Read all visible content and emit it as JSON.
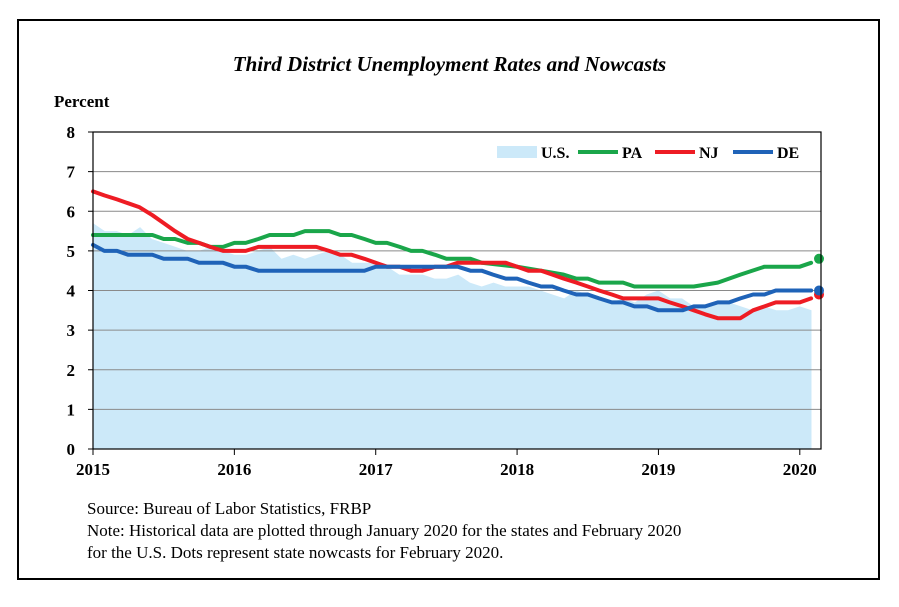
{
  "chart_data": {
    "type": "line",
    "title": "Third District Unemployment Rates and Nowcasts",
    "ylabel": "Percent",
    "xlabel": "",
    "ylim": [
      0,
      8
    ],
    "xlim": [
      2015,
      2020.15
    ],
    "yticks": [
      "0",
      "1",
      "2",
      "3",
      "4",
      "5",
      "6",
      "7",
      "8"
    ],
    "xticks": [
      {
        "value": 2015,
        "label": "2015"
      },
      {
        "value": 2016,
        "label": "2016"
      },
      {
        "value": 2017,
        "label": "2017"
      },
      {
        "value": 2018,
        "label": "2018"
      },
      {
        "value": 2019,
        "label": "2019"
      },
      {
        "value": 2020,
        "label": "2020"
      }
    ],
    "grid": true,
    "legend_position": "top-right",
    "colors": {
      "us": "#cce9f9",
      "pa": "#1aa64a",
      "nj": "#ee1c24",
      "de": "#1f63b8"
    },
    "series": [
      {
        "name": "U.S.",
        "type": "area",
        "color": "#cce9f9",
        "x_start": 2015.0,
        "step": 0.08333,
        "values": [
          5.7,
          5.5,
          5.5,
          5.4,
          5.6,
          5.3,
          5.2,
          5.1,
          5.0,
          5.0,
          5.1,
          5.0,
          4.9,
          4.9,
          5.0,
          5.1,
          4.8,
          4.9,
          4.8,
          4.9,
          5.0,
          4.9,
          4.7,
          4.7,
          4.7,
          4.6,
          4.4,
          4.4,
          4.4,
          4.3,
          4.3,
          4.4,
          4.2,
          4.1,
          4.2,
          4.1,
          4.1,
          4.1,
          4.0,
          3.9,
          3.8,
          4.0,
          3.9,
          3.8,
          3.7,
          3.8,
          3.7,
          3.9,
          4.0,
          3.8,
          3.8,
          3.6,
          3.6,
          3.7,
          3.7,
          3.6,
          3.5,
          3.6,
          3.5,
          3.5,
          3.6,
          3.5
        ]
      },
      {
        "name": "PA",
        "type": "line",
        "color": "#1aa64a",
        "points": [
          [
            2015.0,
            5.4
          ],
          [
            2015.42,
            5.4
          ],
          [
            2015.5,
            5.3
          ],
          [
            2015.58,
            5.3
          ],
          [
            2015.67,
            5.2
          ],
          [
            2015.75,
            5.2
          ],
          [
            2015.83,
            5.1
          ],
          [
            2015.92,
            5.1
          ],
          [
            2016.0,
            5.2
          ],
          [
            2016.08,
            5.2
          ],
          [
            2016.17,
            5.3
          ],
          [
            2016.25,
            5.4
          ],
          [
            2016.33,
            5.4
          ],
          [
            2016.42,
            5.4
          ],
          [
            2016.5,
            5.5
          ],
          [
            2016.67,
            5.5
          ],
          [
            2016.75,
            5.4
          ],
          [
            2016.83,
            5.4
          ],
          [
            2016.92,
            5.3
          ],
          [
            2017.0,
            5.2
          ],
          [
            2017.08,
            5.2
          ],
          [
            2017.17,
            5.1
          ],
          [
            2017.25,
            5.0
          ],
          [
            2017.33,
            5.0
          ],
          [
            2017.42,
            4.9
          ],
          [
            2017.5,
            4.8
          ],
          [
            2017.58,
            4.8
          ],
          [
            2017.67,
            4.8
          ],
          [
            2017.75,
            4.7
          ],
          [
            2018.0,
            4.6
          ],
          [
            2018.17,
            4.5
          ],
          [
            2018.33,
            4.4
          ],
          [
            2018.42,
            4.3
          ],
          [
            2018.5,
            4.3
          ],
          [
            2018.58,
            4.2
          ],
          [
            2018.75,
            4.2
          ],
          [
            2018.83,
            4.1
          ],
          [
            2019.25,
            4.1
          ],
          [
            2019.42,
            4.2
          ],
          [
            2019.58,
            4.4
          ],
          [
            2019.75,
            4.6
          ],
          [
            2019.92,
            4.6
          ],
          [
            2020.0,
            4.6
          ],
          [
            2020.08,
            4.7
          ]
        ],
        "nowcast": 4.8
      },
      {
        "name": "NJ",
        "type": "line",
        "color": "#ee1c24",
        "points": [
          [
            2015.0,
            6.5
          ],
          [
            2015.08,
            6.4
          ],
          [
            2015.17,
            6.3
          ],
          [
            2015.25,
            6.2
          ],
          [
            2015.33,
            6.1
          ],
          [
            2015.42,
            5.9
          ],
          [
            2015.5,
            5.7
          ],
          [
            2015.58,
            5.5
          ],
          [
            2015.67,
            5.3
          ],
          [
            2015.75,
            5.2
          ],
          [
            2015.83,
            5.1
          ],
          [
            2015.92,
            5.0
          ],
          [
            2016.0,
            5.0
          ],
          [
            2016.08,
            5.0
          ],
          [
            2016.17,
            5.1
          ],
          [
            2016.58,
            5.1
          ],
          [
            2016.67,
            5.0
          ],
          [
            2016.75,
            4.9
          ],
          [
            2016.83,
            4.9
          ],
          [
            2016.92,
            4.8
          ],
          [
            2017.0,
            4.7
          ],
          [
            2017.08,
            4.6
          ],
          [
            2017.17,
            4.6
          ],
          [
            2017.25,
            4.5
          ],
          [
            2017.33,
            4.5
          ],
          [
            2017.42,
            4.6
          ],
          [
            2017.5,
            4.6
          ],
          [
            2017.58,
            4.7
          ],
          [
            2017.92,
            4.7
          ],
          [
            2018.0,
            4.6
          ],
          [
            2018.08,
            4.5
          ],
          [
            2018.17,
            4.5
          ],
          [
            2018.25,
            4.4
          ],
          [
            2018.33,
            4.3
          ],
          [
            2018.42,
            4.2
          ],
          [
            2018.5,
            4.1
          ],
          [
            2018.58,
            4.0
          ],
          [
            2018.67,
            3.9
          ],
          [
            2018.75,
            3.8
          ],
          [
            2019.0,
            3.8
          ],
          [
            2019.08,
            3.7
          ],
          [
            2019.17,
            3.6
          ],
          [
            2019.25,
            3.5
          ],
          [
            2019.33,
            3.4
          ],
          [
            2019.42,
            3.3
          ],
          [
            2019.58,
            3.3
          ],
          [
            2019.67,
            3.5
          ],
          [
            2019.75,
            3.6
          ],
          [
            2019.83,
            3.7
          ],
          [
            2019.92,
            3.7
          ],
          [
            2020.0,
            3.7
          ],
          [
            2020.08,
            3.8
          ]
        ],
        "nowcast": 3.9
      },
      {
        "name": "DE",
        "type": "line",
        "color": "#1f63b8",
        "points": [
          [
            2015.0,
            5.15
          ],
          [
            2015.08,
            5.0
          ],
          [
            2015.17,
            5.0
          ],
          [
            2015.25,
            4.9
          ],
          [
            2015.42,
            4.9
          ],
          [
            2015.5,
            4.8
          ],
          [
            2015.67,
            4.8
          ],
          [
            2015.75,
            4.7
          ],
          [
            2015.92,
            4.7
          ],
          [
            2016.0,
            4.6
          ],
          [
            2016.08,
            4.6
          ],
          [
            2016.17,
            4.5
          ],
          [
            2016.92,
            4.5
          ],
          [
            2017.0,
            4.6
          ],
          [
            2017.58,
            4.6
          ],
          [
            2017.67,
            4.5
          ],
          [
            2017.75,
            4.5
          ],
          [
            2017.83,
            4.4
          ],
          [
            2017.92,
            4.3
          ],
          [
            2018.0,
            4.3
          ],
          [
            2018.08,
            4.2
          ],
          [
            2018.17,
            4.1
          ],
          [
            2018.25,
            4.1
          ],
          [
            2018.33,
            4.0
          ],
          [
            2018.42,
            3.9
          ],
          [
            2018.5,
            3.9
          ],
          [
            2018.58,
            3.8
          ],
          [
            2018.67,
            3.7
          ],
          [
            2018.75,
            3.7
          ],
          [
            2018.83,
            3.6
          ],
          [
            2018.92,
            3.6
          ],
          [
            2019.0,
            3.5
          ],
          [
            2019.17,
            3.5
          ],
          [
            2019.25,
            3.6
          ],
          [
            2019.33,
            3.6
          ],
          [
            2019.42,
            3.7
          ],
          [
            2019.5,
            3.7
          ],
          [
            2019.58,
            3.8
          ],
          [
            2019.67,
            3.9
          ],
          [
            2019.75,
            3.9
          ],
          [
            2019.83,
            4.0
          ],
          [
            2020.08,
            4.0
          ]
        ],
        "nowcast": 4.0
      }
    ]
  },
  "notes": {
    "source": "Source: Bureau of Labor Statistics, FRBP",
    "note_line1": "Note: Historical data are plotted through January 2020 for the states and February 2020",
    "note_line2": "for the U.S. Dots represent state nowcasts for February 2020."
  }
}
